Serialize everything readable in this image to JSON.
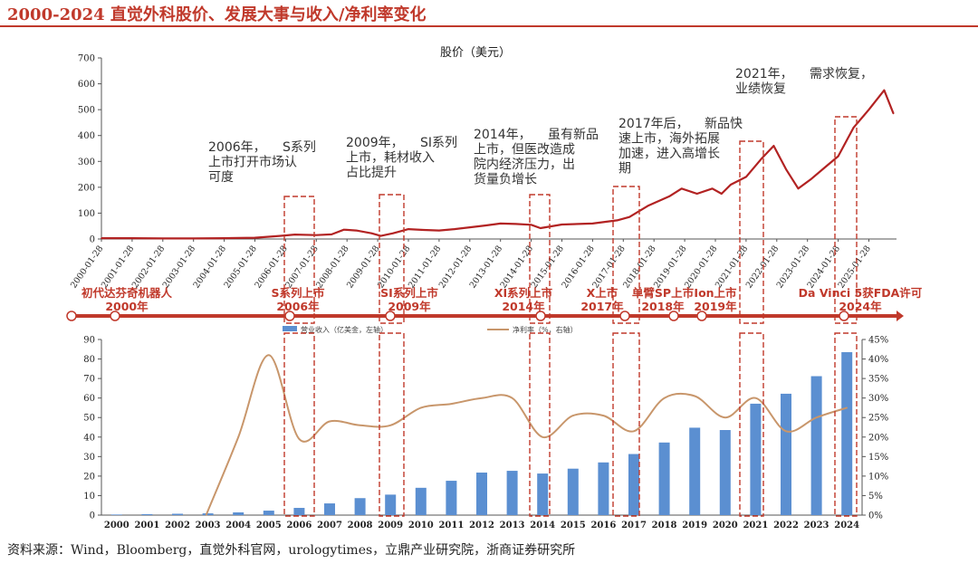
{
  "page": {
    "title": "2000-2024 直觉外科股价、发展大事与收入/净利率变化",
    "source": "资料来源：Wind，Bloomberg，直觉外科官网，urologytimes，立鼎产业研究院，浙商证券研究所"
  },
  "colors": {
    "accent": "#c0392b",
    "bar": "#5b8fd1",
    "net_margin_line": "#c8966b",
    "price_line": "#b22222"
  },
  "chart_data": [
    {
      "type": "line",
      "title": "股价（美元）",
      "ylim": [
        0,
        700
      ],
      "yticks": [
        0,
        100,
        200,
        300,
        400,
        500,
        600,
        700
      ],
      "x_tick_labels": [
        "2000-01-28",
        "2001-01-28",
        "2002-01-28",
        "2003-01-28",
        "2004-01-28",
        "2005-01-28",
        "2006-01-28",
        "2007-01-28",
        "2008-01-28",
        "2009-01-28",
        "2010-01-28",
        "2011-01-28",
        "2012-01-28",
        "2013-01-28",
        "2014-01-28",
        "2015-01-28",
        "2016-01-28",
        "2017-01-28",
        "2018-01-28",
        "2019-01-28",
        "2020-01-28",
        "2021-01-28",
        "2022-01-28",
        "2023-01-28",
        "2024-01-28",
        "2025-01-28"
      ],
      "series": [
        {
          "x": [
            2000.0,
            2001.0,
            2002.0,
            2003.0,
            2004.0,
            2005.0,
            2005.8,
            2006.3,
            2007.0,
            2007.5,
            2007.9,
            2008.3,
            2008.8,
            2009.1,
            2009.5,
            2010.0,
            2010.5,
            2011.0,
            2011.5,
            2012.0,
            2012.5,
            2013.0,
            2013.5,
            2014.0,
            2014.3,
            2015.0,
            2016.0,
            2016.8,
            2017.2,
            2017.8,
            2018.5,
            2018.9,
            2019.4,
            2019.9,
            2020.2,
            2020.5,
            2021.0,
            2021.5,
            2021.9,
            2022.3,
            2022.7,
            2023.1,
            2023.6,
            2024.0,
            2024.5,
            2025.0,
            2025.5,
            2025.8
          ],
          "y": [
            3,
            3,
            2,
            2,
            3,
            5,
            12,
            17,
            15,
            18,
            36,
            33,
            22,
            12,
            22,
            38,
            35,
            33,
            38,
            45,
            52,
            60,
            58,
            55,
            42,
            56,
            60,
            72,
            85,
            128,
            165,
            195,
            175,
            195,
            175,
            210,
            240,
            310,
            360,
            270,
            195,
            230,
            280,
            320,
            430,
            500,
            575,
            485
          ]
        }
      ],
      "annotations": [
        {
          "year": "2006年，",
          "text": [
            "S系列",
            "上市打开市场认",
            "可度"
          ]
        },
        {
          "year": "2009年，",
          "text": [
            "SI系列",
            "上市，耗材收入",
            "占比提升"
          ]
        },
        {
          "year": "2014年，",
          "text": [
            "虽有新品",
            "上市，但医改造成",
            "院内经济压力，出",
            "货量负增长"
          ]
        },
        {
          "year": "2017年后，",
          "text": [
            "新品快",
            "速上市，海外拓展",
            "加速，进入高增长",
            "期"
          ]
        },
        {
          "year": "2021年，",
          "text": [
            "需求恢复，",
            "业绩恢复"
          ]
        }
      ]
    },
    {
      "type": "bar",
      "categories": [
        "2000",
        "2001",
        "2002",
        "2003",
        "2004",
        "2005",
        "2006",
        "2007",
        "2008",
        "2009",
        "2010",
        "2011",
        "2012",
        "2013",
        "2014",
        "2015",
        "2016",
        "2017",
        "2018",
        "2019",
        "2020",
        "2021",
        "2022",
        "2023",
        "2024"
      ],
      "ylim": [
        0,
        90
      ],
      "yticks": [
        0,
        10,
        20,
        30,
        40,
        50,
        60,
        70,
        80,
        90
      ],
      "y2lim": [
        0,
        45
      ],
      "y2ticks": [
        "0%",
        "5%",
        "10%",
        "15%",
        "20%",
        "25%",
        "30%",
        "35%",
        "40%",
        "45%"
      ],
      "series": [
        {
          "name": "营业收入（亿美金，左轴）",
          "type": "bar",
          "values": [
            0.3,
            0.5,
            0.7,
            0.9,
            1.4,
            2.3,
            3.7,
            6.0,
            8.7,
            10.5,
            14.0,
            17.6,
            21.8,
            22.7,
            21.3,
            23.8,
            27.0,
            31.3,
            37.2,
            44.8,
            43.6,
            57.1,
            62.2,
            71.2,
            83.5
          ]
        },
        {
          "name": "净利率（%，右轴）",
          "type": "line",
          "values": [
            null,
            null,
            null,
            null,
            20.0,
            41.0,
            19.5,
            24.0,
            23.0,
            23.0,
            27.5,
            28.5,
            30.0,
            30.0,
            20.0,
            25.5,
            25.5,
            21.5,
            30.0,
            30.5,
            25.0,
            30.0,
            21.5,
            25.0,
            27.5
          ]
        }
      ]
    }
  ],
  "timeline": {
    "milestones": [
      {
        "label": "初代达芬奇机器人",
        "year": "2000年"
      },
      {
        "label": "S系列上市",
        "year": "2006年"
      },
      {
        "label": "SI系列上市",
        "year": "2009年"
      },
      {
        "label": "XI系列上市",
        "year": "2014年"
      },
      {
        "label": "X上市",
        "year": "2017年"
      },
      {
        "label": "单臂SP上市",
        "year": "2018年"
      },
      {
        "label": "Ion上市",
        "year": "2019年"
      },
      {
        "label": "Da Vinci 5获FDA许可",
        "year": "2024年"
      }
    ]
  }
}
